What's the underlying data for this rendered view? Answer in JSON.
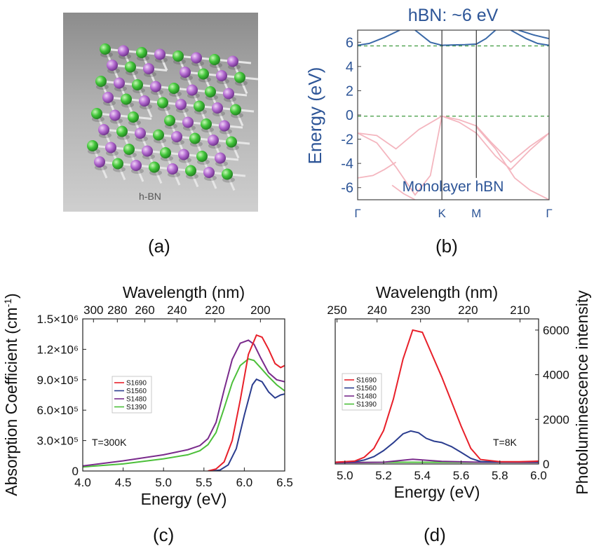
{
  "panels": {
    "a": {
      "letter": "(a)",
      "caption": "h-BN"
    },
    "b": {
      "letter": "(b)"
    },
    "c": {
      "letter": "(c)"
    },
    "d": {
      "letter": "(d)"
    }
  },
  "colors": {
    "S1690": "#e8202a",
    "S1560": "#2b3d8f",
    "S1480": "#7a2b8c",
    "S1390": "#4cbf3a",
    "conduction": "#3a69a8",
    "valence": "#f4b6bf",
    "dashed": "#3e9a3e",
    "label_blue": "#2d5597"
  },
  "chart_data": [
    {
      "id": "b",
      "type": "line",
      "title": "hBN: ~6 eV",
      "annotation": "Monolayer hBN",
      "ylabel": "Energy (eV)",
      "ylim": [
        -7,
        7
      ],
      "yticks": [
        6,
        4,
        2,
        0,
        -2,
        -4,
        -6
      ],
      "ytick_labels": [
        "6",
        "4",
        "2",
        "0",
        "-2",
        "-4",
        "-6"
      ],
      "kpoints": [
        "Γ",
        "K",
        "M",
        "Γ"
      ],
      "kpos": [
        0,
        0.44,
        0.62,
        1.0
      ],
      "dashed_levels": [
        5.7,
        -0.1
      ],
      "conduction_bands": [
        {
          "x": [
            0,
            0.06,
            0.14,
            0.22
          ],
          "y": [
            5.75,
            5.9,
            6.4,
            7
          ]
        },
        {
          "x": [
            0.3,
            0.38,
            0.44,
            0.5,
            0.56,
            0.62,
            0.67,
            0.72
          ],
          "y": [
            7,
            6.0,
            5.75,
            5.78,
            5.8,
            5.85,
            6.3,
            7
          ]
        },
        {
          "x": [
            0.8,
            0.88,
            0.94,
            1.0
          ],
          "y": [
            7,
            6.3,
            5.9,
            5.75
          ]
        },
        {
          "x": [
            0.84,
            0.92,
            1.0
          ],
          "y": [
            7,
            6.6,
            6.3
          ]
        }
      ],
      "valence_bands": [
        {
          "x": [
            0,
            0.1,
            0.2,
            0.32,
            0.44,
            0.53,
            0.62,
            0.7,
            0.8,
            0.9,
            1.0
          ],
          "y": [
            -1.5,
            -1.7,
            -2.8,
            -1.2,
            -0.1,
            -0.4,
            -0.9,
            -2.3,
            -3.9,
            -2.6,
            -1.5
          ]
        },
        {
          "x": [
            0,
            0.1,
            0.2,
            0.3,
            0.38,
            0.44,
            0.53,
            0.62,
            0.72,
            0.8,
            0.9,
            1.0
          ],
          "y": [
            -1.5,
            -2.3,
            -4.3,
            -6.6,
            -5.0,
            -0.1,
            -0.6,
            -1.5,
            -3.4,
            -4.5,
            -2.9,
            -1.5
          ]
        },
        {
          "x": [
            0,
            0.08,
            0.14,
            0.2
          ],
          "y": [
            -5.2,
            -5.0,
            -4.5,
            -3.9
          ]
        },
        {
          "x": [
            0.18,
            0.24,
            0.3
          ],
          "y": [
            -5.8,
            -6.5,
            -7
          ]
        },
        {
          "x": [
            0.62,
            0.72,
            0.82,
            0.9,
            1.0
          ],
          "y": [
            -1.0,
            -2.8,
            -5.2,
            -6.2,
            -7
          ]
        }
      ]
    },
    {
      "id": "c",
      "type": "line",
      "xlabel": "Energy (eV)",
      "ylabel": "Absorption Coefficient (cm",
      "ylabel_sup": "-1",
      "ylabel_end": ")",
      "top_xlabel": "Wavelength (nm)",
      "xlim": [
        4.0,
        6.5
      ],
      "ylim": [
        0,
        1500000
      ],
      "xticks": [
        4.0,
        4.5,
        5.0,
        5.5,
        6.0,
        6.5
      ],
      "xtick_labels": [
        "4.0",
        "4.5",
        "5.0",
        "5.5",
        "6.0",
        "6.5"
      ],
      "yticks": [
        0,
        300000,
        600000,
        900000,
        1200000,
        1500000
      ],
      "ytick_labels": [
        "0",
        "3.0×10⁵",
        "6.0×10⁵",
        "9.0×10⁵",
        "1.2×10⁶",
        "1.5×10⁶"
      ],
      "top_ticks_nm": [
        300,
        280,
        260,
        240,
        220,
        200
      ],
      "top_tick_labels": [
        "300",
        "280",
        "260",
        "240",
        "220",
        "200"
      ],
      "annotation": "T=300K",
      "legend": [
        "S1690",
        "S1560",
        "S1480",
        "S1390"
      ],
      "series": [
        {
          "name": "S1690",
          "x": [
            5.55,
            5.65,
            5.75,
            5.85,
            5.95,
            6.05,
            6.15,
            6.22,
            6.3,
            6.38,
            6.45,
            6.5
          ],
          "y": [
            0,
            20000,
            90000,
            300000,
            700000,
            1150000,
            1340000,
            1320000,
            1200000,
            1060000,
            1020000,
            1040000
          ]
        },
        {
          "name": "S1560",
          "x": [
            5.6,
            5.7,
            5.8,
            5.9,
            6.0,
            6.1,
            6.15,
            6.22,
            6.3,
            6.38,
            6.45,
            6.5
          ],
          "y": [
            0,
            10000,
            60000,
            220000,
            550000,
            850000,
            905000,
            880000,
            780000,
            720000,
            750000,
            760000
          ]
        },
        {
          "name": "S1480",
          "x": [
            4.0,
            4.5,
            5.0,
            5.3,
            5.45,
            5.55,
            5.65,
            5.75,
            5.85,
            5.95,
            6.05,
            6.12,
            6.2,
            6.3,
            6.4,
            6.5
          ],
          "y": [
            50000,
            100000,
            160000,
            210000,
            250000,
            320000,
            480000,
            800000,
            1100000,
            1260000,
            1290000,
            1250000,
            1120000,
            970000,
            900000,
            880000
          ]
        },
        {
          "name": "S1390",
          "x": [
            4.0,
            4.5,
            5.0,
            5.3,
            5.45,
            5.55,
            5.65,
            5.75,
            5.85,
            5.95,
            6.05,
            6.12,
            6.2,
            6.3,
            6.4,
            6.5
          ],
          "y": [
            40000,
            70000,
            120000,
            160000,
            200000,
            260000,
            380000,
            620000,
            870000,
            1040000,
            1105000,
            1090000,
            1020000,
            930000,
            850000,
            790000
          ]
        }
      ]
    },
    {
      "id": "d",
      "type": "line",
      "xlabel": "Energy (eV)",
      "ylabel": "Photoluminescence intensity",
      "top_xlabel": "Wavelength (nm)",
      "xlim": [
        4.95,
        6.0
      ],
      "ylim": [
        0,
        6500
      ],
      "xticks": [
        5.0,
        5.2,
        5.4,
        5.6,
        5.8,
        6.0
      ],
      "xtick_labels": [
        "5.0",
        "5.2",
        "5.4",
        "5.6",
        "5.8",
        "6.0"
      ],
      "yticks": [
        0,
        2000,
        4000,
        6000
      ],
      "ytick_labels": [
        "0",
        "2000",
        "4000",
        "6000"
      ],
      "top_ticks_nm": [
        250,
        240,
        230,
        220,
        210
      ],
      "top_tick_labels": [
        "250",
        "240",
        "230",
        "220",
        "210"
      ],
      "annotation": "T=8K",
      "legend": [
        "S1690",
        "S1560",
        "S1480",
        "S1390"
      ],
      "series": [
        {
          "name": "S1690",
          "x": [
            4.95,
            5.05,
            5.1,
            5.15,
            5.2,
            5.25,
            5.3,
            5.35,
            5.4,
            5.45,
            5.5,
            5.55,
            5.6,
            5.65,
            5.7,
            5.8,
            5.9,
            6.0
          ],
          "y": [
            80,
            130,
            300,
            700,
            1500,
            2900,
            4700,
            6000,
            5900,
            4900,
            3900,
            2800,
            1700,
            700,
            200,
            100,
            100,
            130
          ]
        },
        {
          "name": "S1560",
          "x": [
            4.95,
            5.05,
            5.1,
            5.15,
            5.2,
            5.25,
            5.3,
            5.34,
            5.38,
            5.42,
            5.46,
            5.5,
            5.55,
            5.6,
            5.65,
            5.7,
            5.8,
            6.0
          ],
          "y": [
            80,
            100,
            180,
            330,
            600,
            950,
            1350,
            1480,
            1400,
            1150,
            1020,
            960,
            780,
            520,
            250,
            110,
            90,
            100
          ]
        },
        {
          "name": "S1480",
          "x": [
            4.95,
            5.2,
            5.3,
            5.35,
            5.4,
            5.5,
            5.7,
            6.0
          ],
          "y": [
            60,
            80,
            170,
            210,
            180,
            120,
            80,
            70
          ]
        },
        {
          "name": "S1390",
          "x": [
            4.95,
            5.3,
            5.6,
            6.0
          ],
          "y": [
            70,
            80,
            75,
            70
          ]
        }
      ]
    }
  ]
}
